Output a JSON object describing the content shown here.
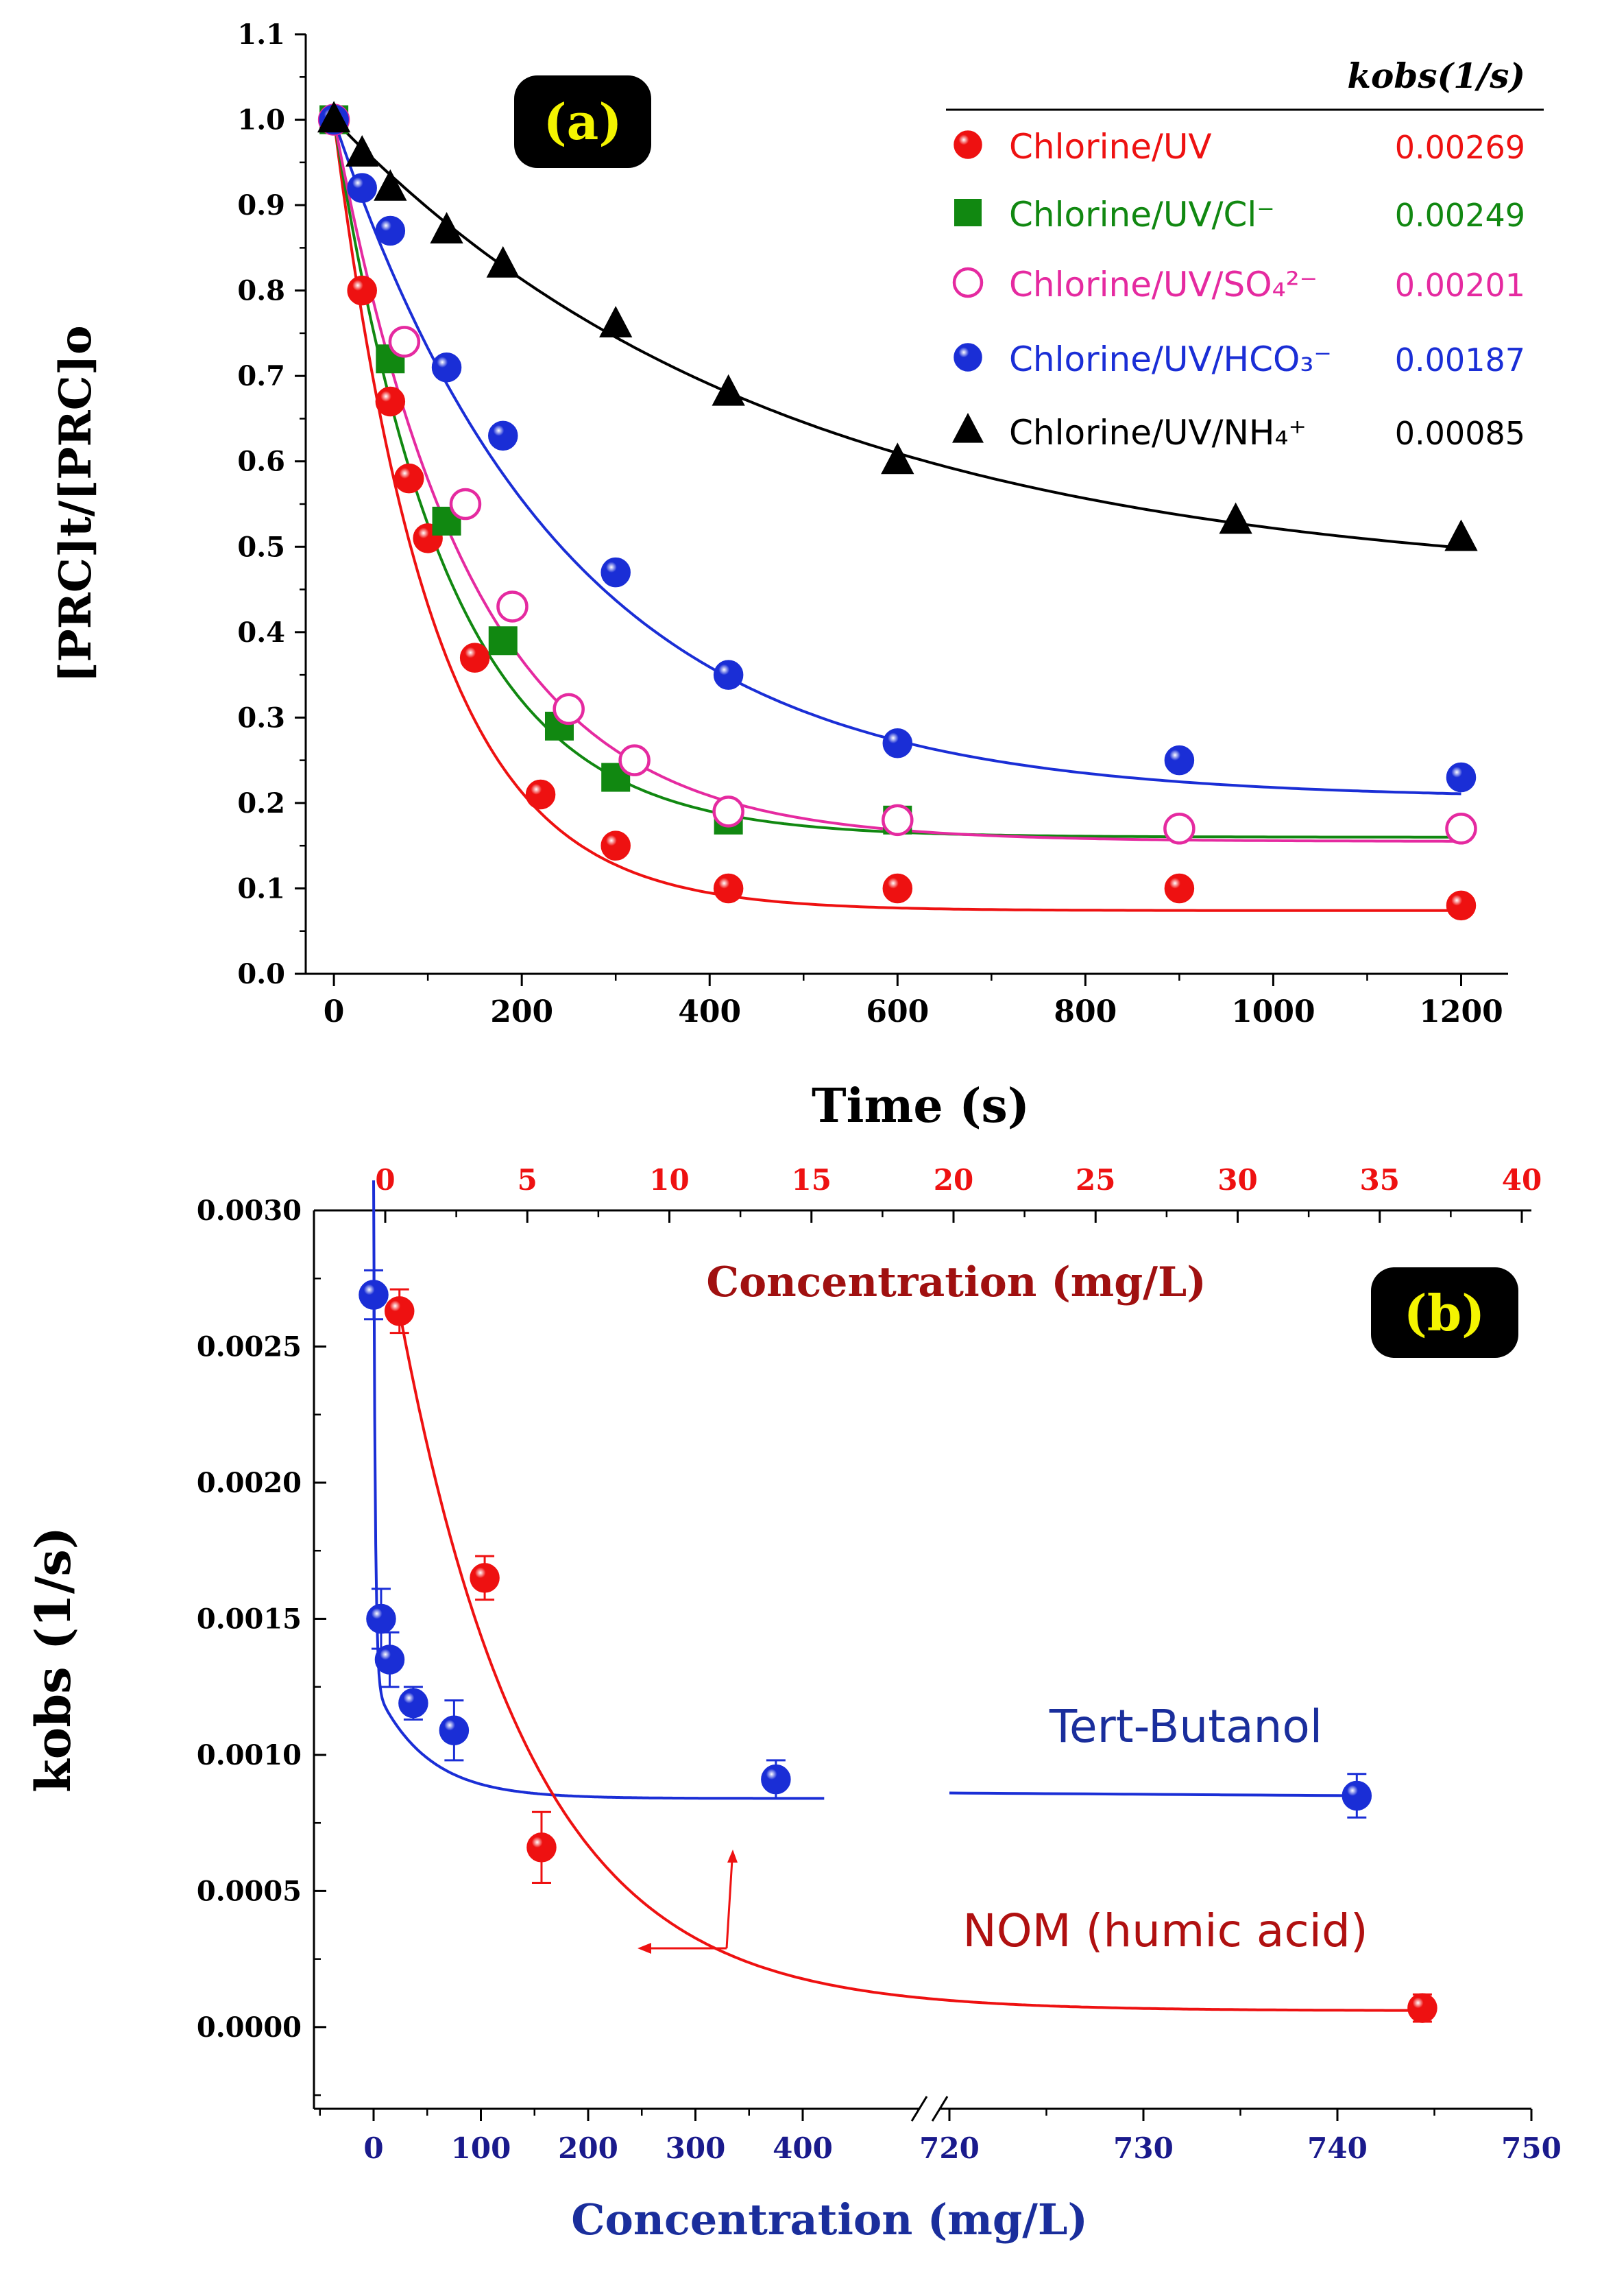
{
  "chart_data": [
    {
      "type": "scatter",
      "panel_label": "(a)",
      "xlabel": "Time (s)",
      "ylabel": "[PRC]t/[PRC]o",
      "xlim": [
        -30,
        1250
      ],
      "ylim": [
        0.0,
        1.1
      ],
      "x_ticks": [
        0,
        200,
        400,
        600,
        800,
        1000,
        1200
      ],
      "x_tick_labels": [
        "0",
        "200",
        "400",
        "600",
        "800",
        "1000",
        "1200"
      ],
      "y_ticks": [
        0.0,
        0.1,
        0.2,
        0.3,
        0.4,
        0.5,
        0.6,
        0.7,
        0.8,
        0.9,
        1.0,
        1.1
      ],
      "y_tick_labels": [
        "0.0",
        "0.1",
        "0.2",
        "0.3",
        "0.4",
        "0.5",
        "0.6",
        "0.7",
        "0.8",
        "0.9",
        "1.0",
        "1.1"
      ],
      "legend_header": "kobs(1/s)",
      "legend_placement": "top-right",
      "series": [
        {
          "name": "Chlorine/UV",
          "kobs": "0.00269",
          "color": "#ee1111",
          "marker": "sphere",
          "x": [
            0,
            30,
            60,
            80,
            100,
            150,
            220,
            300,
            420,
            600,
            900,
            1200
          ],
          "y": [
            1.0,
            0.8,
            0.67,
            0.58,
            0.51,
            0.37,
            0.21,
            0.15,
            0.1,
            0.1,
            0.1,
            0.08
          ],
          "fit": {
            "a": 0.926,
            "k": 0.0095,
            "c": 0.074
          }
        },
        {
          "name": "Chlorine/UV/Cl⁻",
          "kobs": "0.00249",
          "color": "#118811",
          "marker": "square",
          "x": [
            0,
            60,
            120,
            180,
            240,
            300,
            420,
            600
          ],
          "y": [
            1.0,
            0.72,
            0.53,
            0.39,
            0.29,
            0.23,
            0.18,
            0.18
          ],
          "fit": {
            "a": 0.84,
            "k": 0.0083,
            "c": 0.16
          }
        },
        {
          "name": "Chlorine/UV/SO₄²⁻",
          "kobs": "0.00201",
          "color": "#e52aa0",
          "marker": "open-circle",
          "x": [
            0,
            75,
            140,
            190,
            250,
            320,
            420,
            600,
            900,
            1200
          ],
          "y": [
            1.0,
            0.74,
            0.55,
            0.43,
            0.31,
            0.25,
            0.19,
            0.18,
            0.17,
            0.17
          ],
          "fit": {
            "a": 0.845,
            "k": 0.0069,
            "c": 0.155
          }
        },
        {
          "name": "Chlorine/UV/HCO₃⁻",
          "kobs": "0.00187",
          "color": "#1a2ed6",
          "marker": "sphere",
          "x": [
            0,
            30,
            60,
            120,
            180,
            300,
            420,
            600,
            900,
            1200
          ],
          "y": [
            1.0,
            0.92,
            0.87,
            0.71,
            0.63,
            0.47,
            0.35,
            0.27,
            0.25,
            0.23
          ],
          "fit": {
            "a": 0.795,
            "k": 0.0041,
            "c": 0.205
          }
        },
        {
          "name": "Chlorine/UV/NH₄⁺",
          "kobs": "0.00085",
          "color": "#000000",
          "marker": "triangle",
          "x": [
            0,
            30,
            60,
            120,
            180,
            300,
            420,
            600,
            960,
            1200
          ],
          "y": [
            1.0,
            0.96,
            0.92,
            0.87,
            0.83,
            0.76,
            0.68,
            0.6,
            0.53,
            0.51
          ],
          "fit": {
            "a": 0.545,
            "k": 0.0021,
            "c": 0.455
          }
        }
      ]
    },
    {
      "type": "scatter",
      "panel_label": "(b)",
      "xlabel": "Concentration (mg/L)",
      "ylabel": "kobs (1/s)",
      "top_xlabel": "Concentration (mg/L)",
      "ylim": [
        -0.0003,
        0.003
      ],
      "y_ticks": [
        0.0,
        0.0005,
        0.001,
        0.0015,
        0.002,
        0.0025,
        0.003
      ],
      "y_tick_labels": [
        "0.0000",
        "0.0005",
        "0.0010",
        "0.0015",
        "0.0020",
        "0.0025",
        "0.0030"
      ],
      "bottom_axis_broken": true,
      "bottom_ticks_left_segment": [
        0,
        100,
        200,
        300,
        400
      ],
      "bottom_ticks_right_segment": [
        720,
        730,
        740,
        750
      ],
      "bottom_tick_labels": [
        "0",
        "100",
        "200",
        "300",
        "400",
        "720",
        "730",
        "740",
        "750"
      ],
      "top_ticks": [
        0,
        5,
        10,
        15,
        20,
        25,
        30,
        35,
        40
      ],
      "top_tick_labels": [
        "0",
        "5",
        "10",
        "15",
        "20",
        "25",
        "30",
        "35",
        "40"
      ],
      "series": [
        {
          "name": "Tert-Butanol",
          "axis": "bottom",
          "color": "#1a2ed6",
          "x": [
            0,
            7,
            15,
            37,
            75,
            375,
            741
          ],
          "y": [
            0.00269,
            0.0015,
            0.00135,
            0.00119,
            0.00109,
            0.00091,
            0.00085
          ],
          "yerr": [
            9e-05,
            0.00011,
            0.0001,
            6e-05,
            0.00011,
            7e-05,
            8e-05
          ]
        },
        {
          "name": "NOM (humic acid)",
          "axis": "top",
          "color": "#ee1111",
          "x": [
            0.5,
            3.5,
            5.5,
            36.5
          ],
          "y": [
            0.00263,
            0.00165,
            0.00066,
            7e-05
          ],
          "yerr": [
            8e-05,
            8e-05,
            0.00013,
            5e-05
          ]
        }
      ]
    }
  ]
}
